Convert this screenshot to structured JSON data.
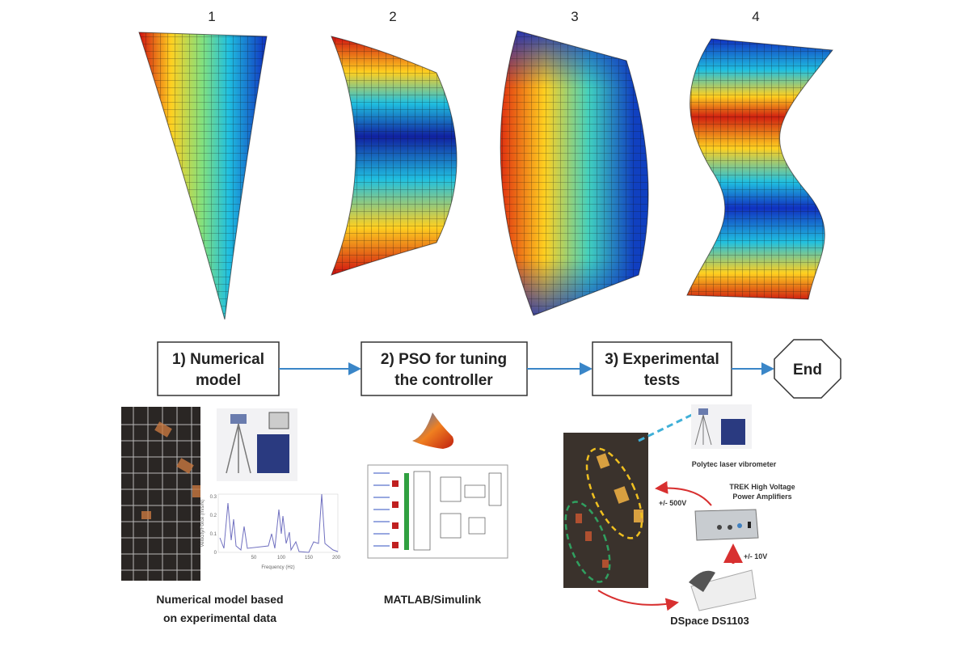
{
  "mode_labels": [
    "1",
    "2",
    "3",
    "4"
  ],
  "steps": [
    {
      "line1": "1) Numerical",
      "line2": "model"
    },
    {
      "line1": "2) PSO for tuning",
      "line2": "the controller"
    },
    {
      "line1": "3) Experimental",
      "line2": "tests"
    }
  ],
  "end_label": "End",
  "captions": {
    "numerical_line1": "Numerical model based",
    "numerical_line2": "on experimental data",
    "matlab": "MATLAB/Simulink",
    "polytec": "Polytec laser vibrometer",
    "trek_line1": "TREK High Voltage",
    "trek_line2": "Power Amplifiers",
    "v500": "+/- 500V",
    "v10": "+/- 10V",
    "dspace": "DSpace DS1103"
  },
  "frf_plot": {
    "ylabel": "Velocity/Force (m/s/N)",
    "xlabel": "Frequency (Hz)",
    "xticks": [
      "50",
      "100",
      "150",
      "200"
    ],
    "yticks": [
      "0",
      "0.1",
      "0.2",
      "0.3"
    ]
  },
  "colors": {
    "arrow": "#3a86c8",
    "red_arrow": "#d83030",
    "yellow_ellipse": "#f0c020",
    "green_ellipse": "#30a060"
  }
}
